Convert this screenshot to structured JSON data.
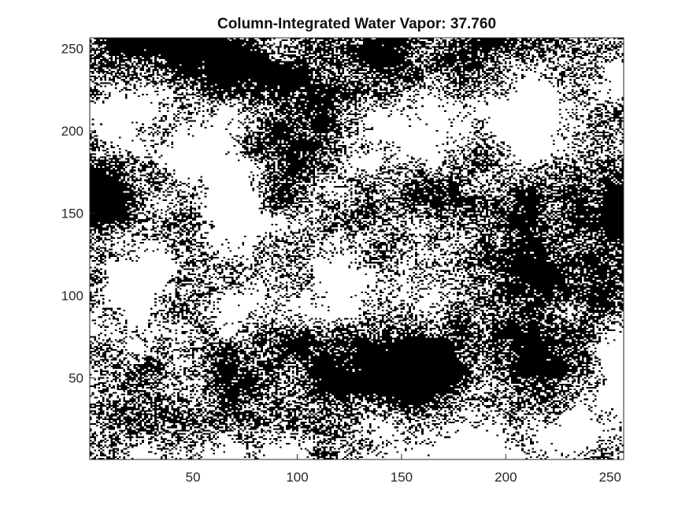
{
  "chart_data": {
    "type": "heatmap",
    "title": "Column-Integrated Water Vapor:  37.760",
    "xlabel": "",
    "ylabel": "",
    "xlim": [
      0.5,
      256.5
    ],
    "ylim": [
      0.5,
      256.5
    ],
    "y_direction": "normal",
    "x_ticks": [
      50,
      100,
      150,
      200,
      250
    ],
    "y_ticks": [
      50,
      100,
      150,
      200,
      250
    ],
    "x_tick_labels": [
      "50",
      "100",
      "150",
      "200",
      "250"
    ],
    "y_tick_labels": [
      "50",
      "100",
      "150",
      "200",
      "250"
    ],
    "grid_size": [
      256,
      256
    ],
    "colormap": [
      "#ffffff",
      "#000000"
    ],
    "frame_color": "#262626",
    "grid": false,
    "legend": "none"
  }
}
